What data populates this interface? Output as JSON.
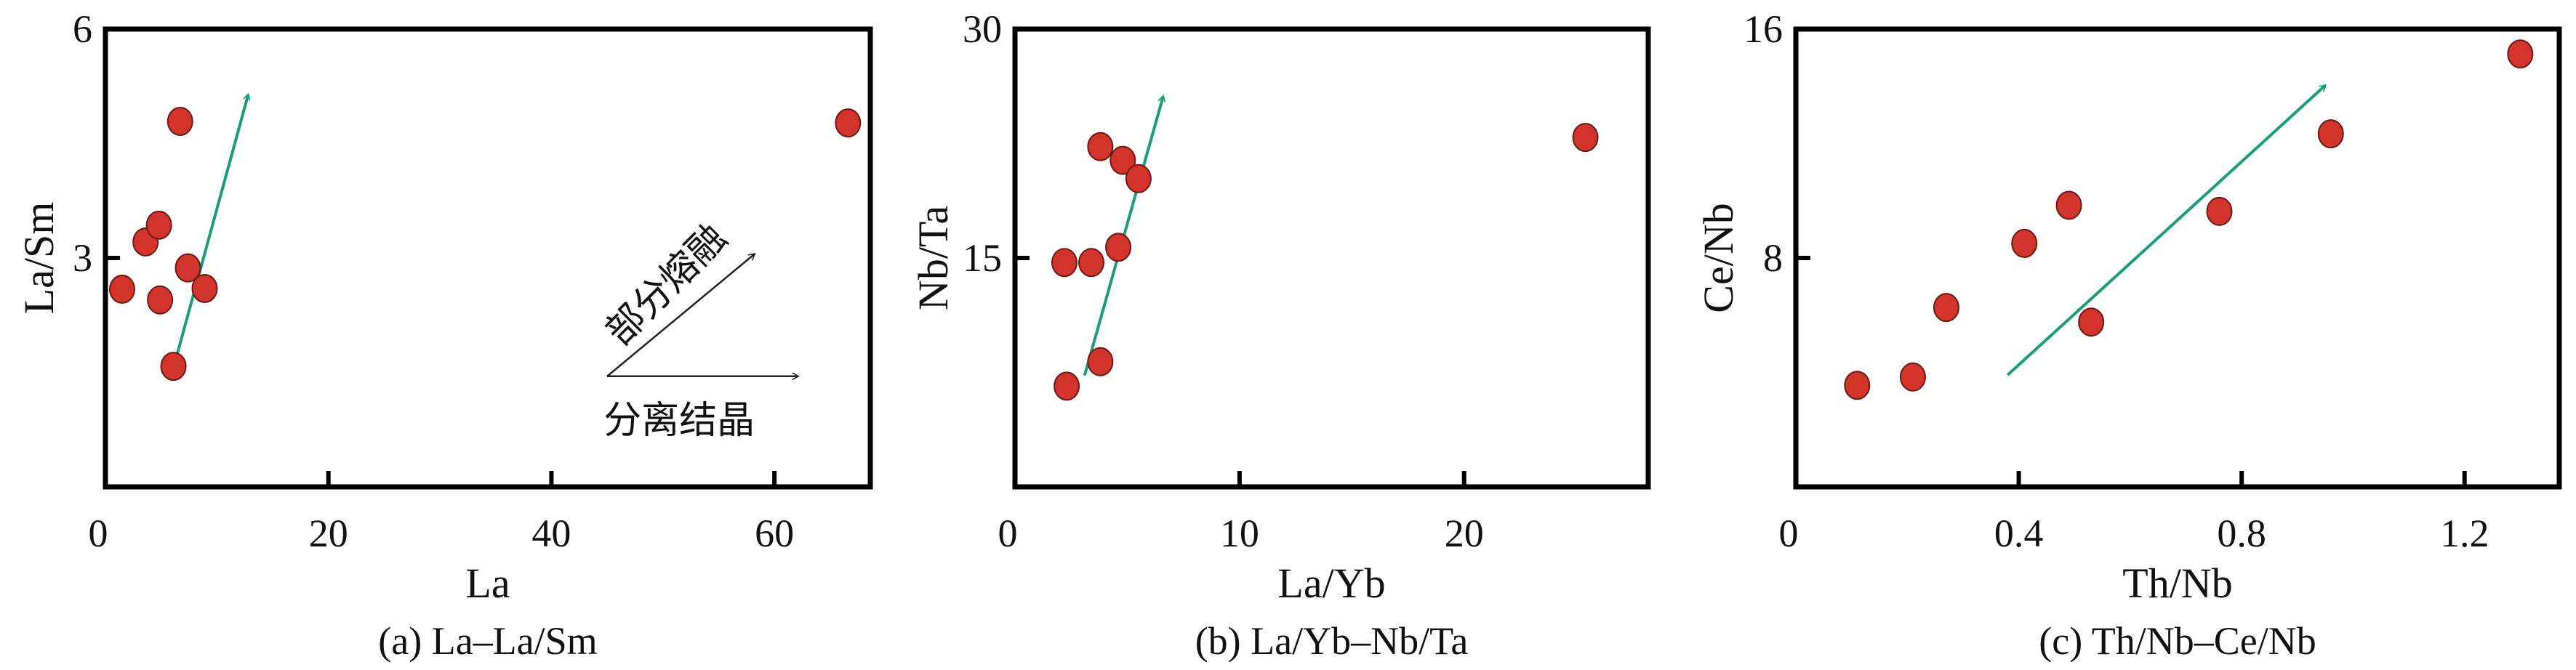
{
  "chart_data": [
    {
      "type": "scatter",
      "caption": "(a) La–La/Sm",
      "xlabel": "La",
      "ylabel": "La/Sm",
      "xlim": [
        0,
        68.6
      ],
      "ylim": [
        0,
        6
      ],
      "xticks": [
        0,
        20,
        40,
        60
      ],
      "xtick_labels": [
        "0",
        "20",
        "40",
        "60"
      ],
      "yticks": [
        3,
        6
      ],
      "ytick_labels": [
        "3",
        "6"
      ],
      "points": [
        [
          1.5,
          2.59
        ],
        [
          3.6,
          3.21
        ],
        [
          4.8,
          3.43
        ],
        [
          4.9,
          2.45
        ],
        [
          6.1,
          1.58
        ],
        [
          6.7,
          4.79
        ],
        [
          7.4,
          2.87
        ],
        [
          8.9,
          2.6
        ],
        [
          66.6,
          4.77
        ]
      ],
      "trend_arrow": [
        [
          6.4,
          1.72
        ],
        [
          12.8,
          5.14
        ]
      ],
      "process_arrows": {
        "origin": [
          45.0,
          1.45
        ],
        "partial_melting_end": [
          58.2,
          3.05
        ],
        "fractional_crystallization_end": [
          62.1,
          1.45
        ],
        "partial_melting_label": "部分熔融",
        "fractional_crystallization_label": "分离结晶"
      }
    },
    {
      "type": "scatter",
      "caption": "(b) La/Yb–Nb/Ta",
      "xlabel": "La/Yb",
      "ylabel": "Nb/Ta",
      "xlim": [
        0,
        28.2
      ],
      "ylim": [
        0,
        30
      ],
      "xticks": [
        0,
        10,
        20
      ],
      "xtick_labels": [
        "0",
        "10",
        "20"
      ],
      "yticks": [
        15,
        30
      ],
      "ytick_labels": [
        "15",
        "30"
      ],
      "points": [
        [
          2.2,
          14.7
        ],
        [
          3.4,
          14.7
        ],
        [
          3.8,
          22.3
        ],
        [
          4.6,
          15.7
        ],
        [
          4.8,
          21.4
        ],
        [
          5.5,
          20.2
        ],
        [
          3.8,
          8.2
        ],
        [
          2.3,
          6.6
        ],
        [
          25.4,
          22.9
        ]
      ],
      "trend_arrow": [
        [
          3.1,
          7.3
        ],
        [
          6.6,
          25.6
        ]
      ]
    },
    {
      "type": "scatter",
      "caption": "(c) Th/Nb–Ce/Nb",
      "xlabel": "Th/Nb",
      "ylabel": "Ce/Nb",
      "xlim": [
        0,
        1.37
      ],
      "ylim": [
        0,
        16
      ],
      "xticks": [
        0,
        0.4,
        0.8,
        1.2
      ],
      "xtick_labels": [
        "0",
        "0.4",
        "0.8",
        "1.2"
      ],
      "yticks": [
        8,
        16
      ],
      "ytick_labels": [
        "8",
        "16"
      ],
      "points": [
        [
          0.11,
          3.55
        ],
        [
          0.21,
          3.84
        ],
        [
          0.27,
          6.27
        ],
        [
          0.41,
          8.51
        ],
        [
          0.49,
          9.84
        ],
        [
          0.53,
          5.76
        ],
        [
          0.76,
          9.63
        ],
        [
          0.96,
          12.34
        ],
        [
          1.3,
          15.13
        ]
      ],
      "trend_arrow": [
        [
          0.38,
          3.91
        ],
        [
          0.95,
          14.03
        ]
      ]
    }
  ],
  "colors": {
    "point_fill": "#d2332b",
    "point_stroke": "#6a1a14",
    "trend_arrow": "#1a9e7a",
    "process_arrow": "#222222",
    "axis": "#000000"
  }
}
